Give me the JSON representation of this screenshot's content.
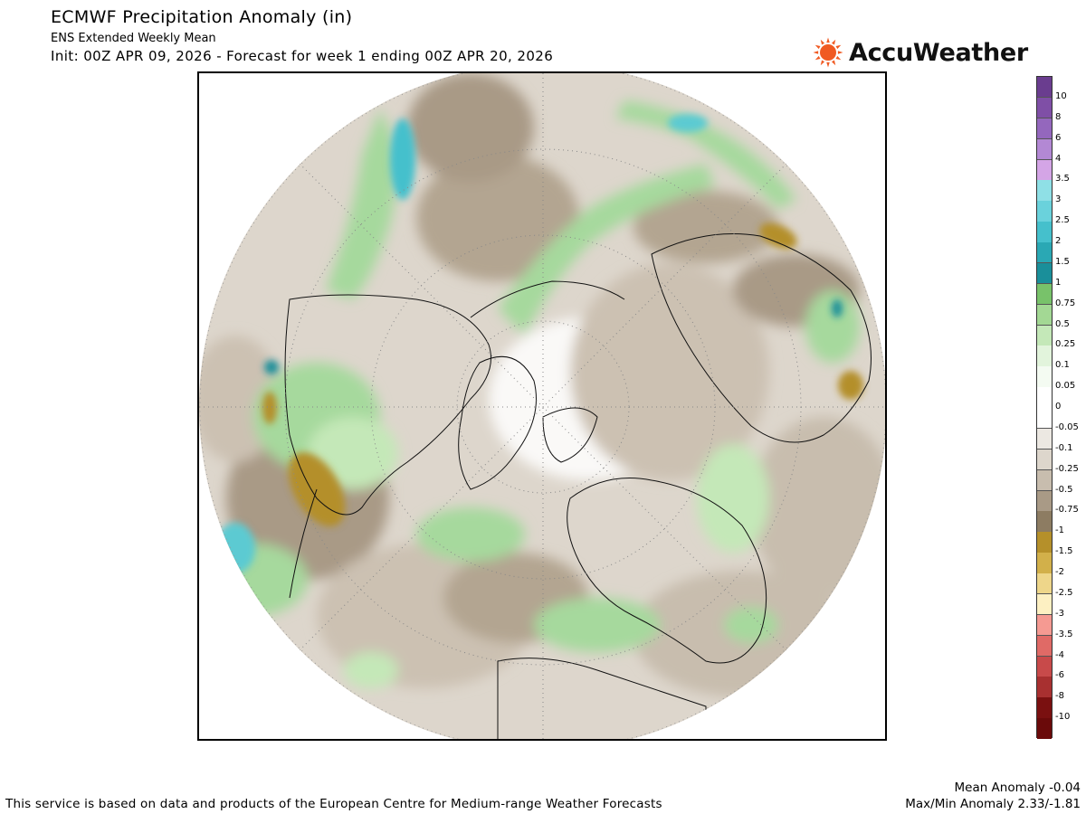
{
  "header": {
    "title": "ECMWF Precipitation Anomaly (in)",
    "subtitle": "ENS Extended Weekly Mean",
    "init": "Init: 00Z APR 09, 2026 - Forecast for week 1 ending 00Z APR 20, 2026"
  },
  "brand": {
    "name": "AccuWeather",
    "icon": "sun-icon",
    "icon_color": "#f05a22"
  },
  "map": {
    "projection": "north-polar-stereographic",
    "icon": "hemisphere-map",
    "colors": {
      "dry_light": "#e4e0da",
      "dry_mid": "#cfc5b8",
      "dry_dark": "#a59684",
      "dry_strong": "#b48f2a",
      "wet_light": "#d8efd4",
      "wet_mid": "#a6d99d",
      "wet_strong": "#7bc56f",
      "wet_teal": "#2aa6b2",
      "wet_cyan": "#5ccad2"
    }
  },
  "legend": {
    "items": [
      {
        "label": "10",
        "color": "#6a3d8f"
      },
      {
        "label": "8",
        "color": "#7f4fa6"
      },
      {
        "label": "6",
        "color": "#9467bd"
      },
      {
        "label": "4",
        "color": "#b388d4"
      },
      {
        "label": "3.5",
        "color": "#d4a5e6"
      },
      {
        "label": "3",
        "color": "#8fe0e6"
      },
      {
        "label": "2.5",
        "color": "#6ad2dc"
      },
      {
        "label": "2",
        "color": "#45c0cc"
      },
      {
        "label": "1.5",
        "color": "#2aa8b4"
      },
      {
        "label": "1",
        "color": "#1a8f9a"
      },
      {
        "label": "0.75",
        "color": "#78c26a"
      },
      {
        "label": "0.5",
        "color": "#a3d894"
      },
      {
        "label": "0.25",
        "color": "#c4e8b8"
      },
      {
        "label": "0.1",
        "color": "#e2f4dc"
      },
      {
        "label": "0.05",
        "color": "#f4fbf2"
      },
      {
        "label": "0",
        "color": "#ffffff"
      },
      {
        "label": "-0.05",
        "color": "#ffffff"
      },
      {
        "label": "-0.1",
        "color": "#ece8e2"
      },
      {
        "label": "-0.25",
        "color": "#ddd6cc"
      },
      {
        "label": "-0.5",
        "color": "#c8bdae"
      },
      {
        "label": "-0.75",
        "color": "#a99a86"
      },
      {
        "label": "-1",
        "color": "#8d7c62"
      },
      {
        "label": "-1.5",
        "color": "#b5902a"
      },
      {
        "label": "-2",
        "color": "#d2b04a"
      },
      {
        "label": "-2.5",
        "color": "#eed68a"
      },
      {
        "label": "-3",
        "color": "#fdf0c2"
      },
      {
        "label": "-3.5",
        "color": "#f59a92"
      },
      {
        "label": "-4",
        "color": "#e06a66"
      },
      {
        "label": "-6",
        "color": "#c84a4a"
      },
      {
        "label": "-8",
        "color": "#a83030"
      },
      {
        "label": "-10",
        "color": "#7a1010"
      }
    ],
    "bottom_color": "#6a0a0a"
  },
  "footer": {
    "credit": "This service is based on data and products of the European Centre for Medium-range Weather Forecasts",
    "mean_anomaly": "Mean Anomaly -0.04",
    "maxmin_anomaly": "Max/Min Anomaly 2.33/-1.81"
  }
}
